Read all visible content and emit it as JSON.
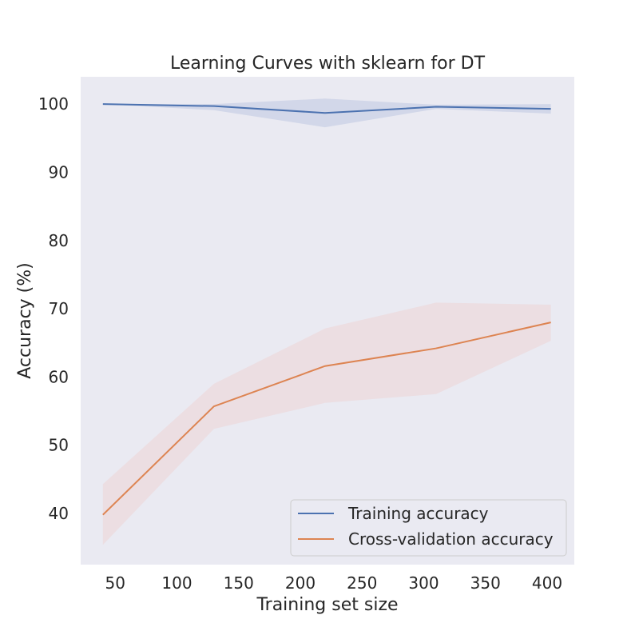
{
  "chart_data": {
    "type": "line",
    "title": "Learning Curves with sklearn for DT",
    "xlabel": "Training set size",
    "ylabel": "Accuracy (%)",
    "xlim": [
      22,
      422
    ],
    "ylim": [
      32.5,
      104.0
    ],
    "xticks": [
      50,
      100,
      150,
      200,
      250,
      300,
      350,
      400
    ],
    "yticks": [
      40,
      50,
      60,
      70,
      80,
      90,
      100
    ],
    "grid": false,
    "legend_position": "lower-right",
    "x": [
      40,
      130,
      220,
      310,
      403
    ],
    "series": [
      {
        "name": "Training accuracy",
        "color": "#4c72b0",
        "band_color": "#c9d0e6",
        "values": [
          100.0,
          99.7,
          98.7,
          99.6,
          99.3
        ],
        "lower": [
          100.0,
          99.1,
          96.6,
          99.3,
          98.6
        ],
        "upper": [
          100.0,
          100.0,
          100.8,
          99.9,
          100.0
        ]
      },
      {
        "name": "Cross-validation accuracy",
        "color": "#dd8452",
        "band_color": "#ecd9dc",
        "values": [
          39.8,
          55.7,
          61.6,
          64.2,
          68.0
        ],
        "lower": [
          35.4,
          52.4,
          56.2,
          57.5,
          65.3
        ],
        "upper": [
          44.3,
          59.0,
          67.1,
          70.9,
          70.6
        ]
      }
    ]
  }
}
